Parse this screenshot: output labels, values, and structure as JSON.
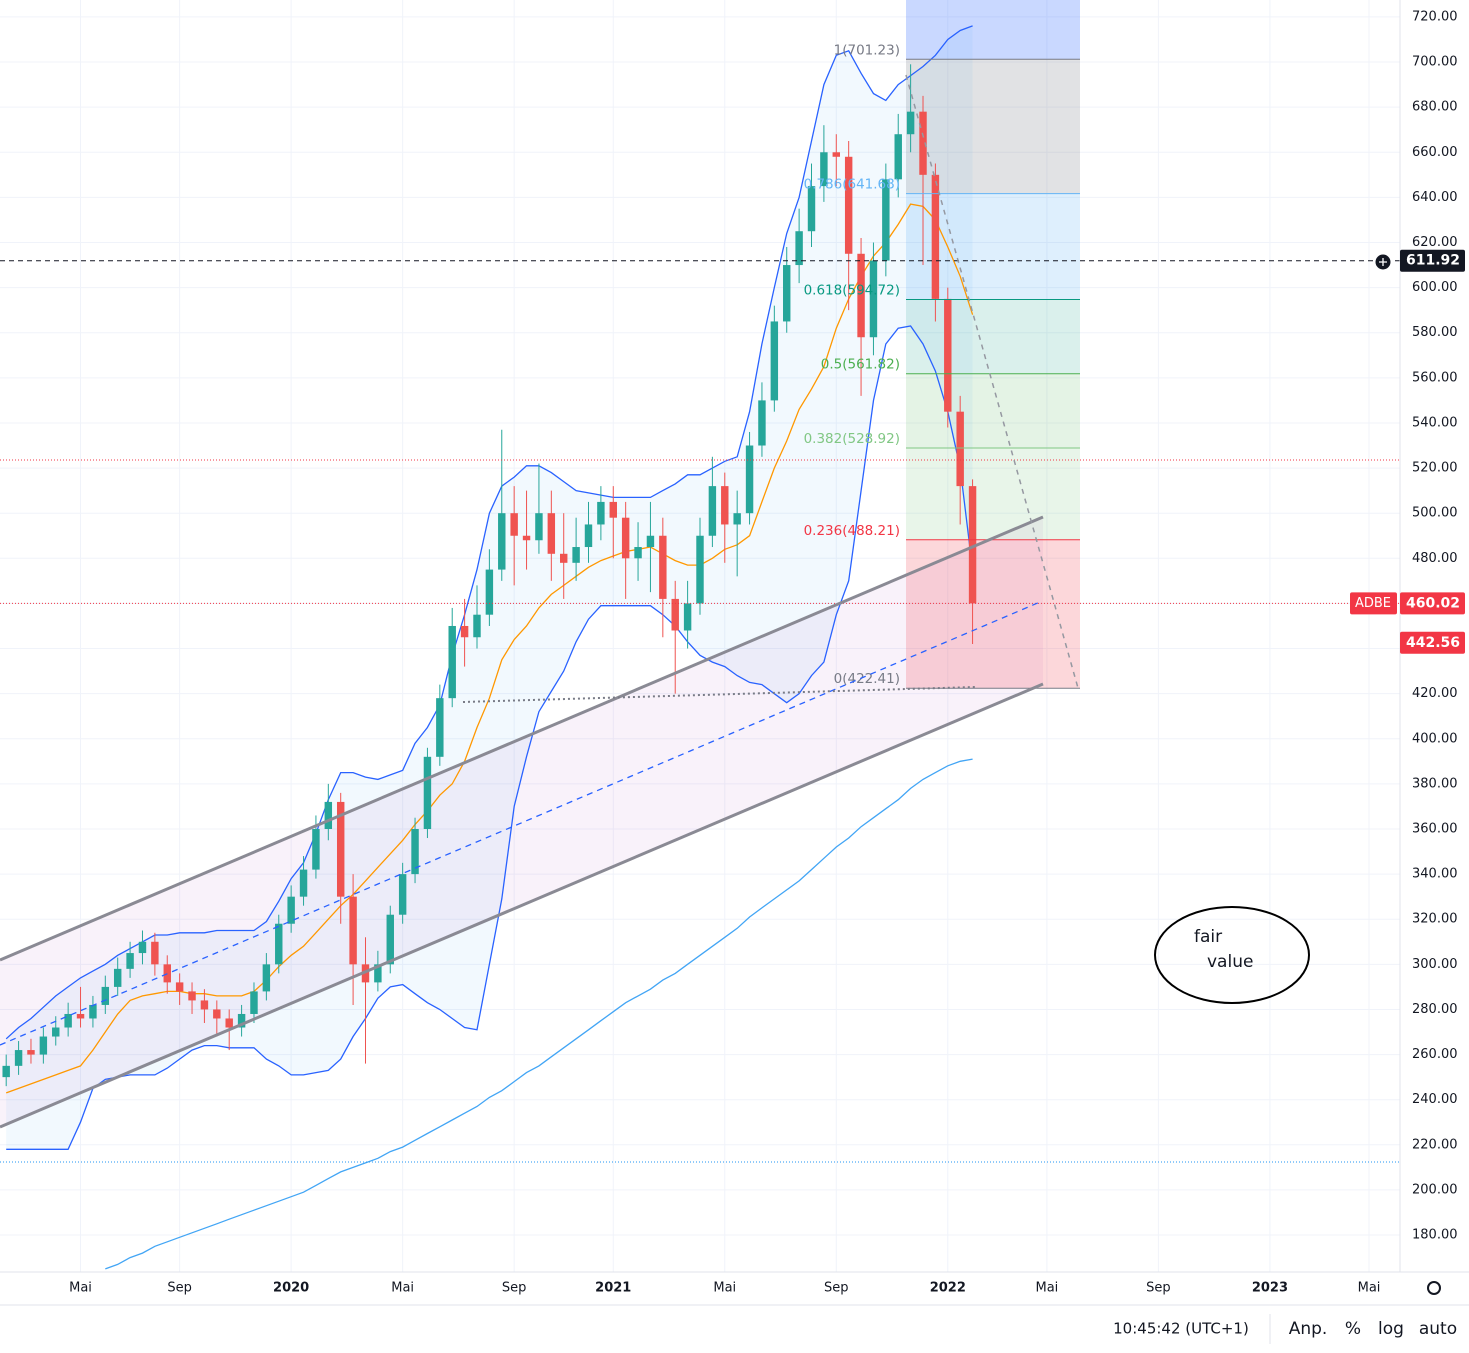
{
  "chart_data": {
    "type": "candlestick",
    "ylim": [
      164.5,
      727.5
    ],
    "yticks": [
      {
        "value": 720,
        "label": "720.00"
      },
      {
        "value": 700,
        "label": "700.00"
      },
      {
        "value": 680,
        "label": "680.00"
      },
      {
        "value": 660,
        "label": "660.00"
      },
      {
        "value": 640,
        "label": "640.00"
      },
      {
        "value": 620,
        "label": "620.00"
      },
      {
        "value": 600,
        "label": "600.00"
      },
      {
        "value": 580,
        "label": "580.00"
      },
      {
        "value": 560,
        "label": "560.00"
      },
      {
        "value": 540,
        "label": "540.00"
      },
      {
        "value": 520,
        "label": "520.00"
      },
      {
        "value": 500,
        "label": "500.00"
      },
      {
        "value": 480,
        "label": "480.00"
      },
      {
        "value": 460,
        "label": "460.00"
      },
      {
        "value": 440,
        "label": "440.00"
      },
      {
        "value": 420,
        "label": "420.00"
      },
      {
        "value": 400,
        "label": "400.00"
      },
      {
        "value": 380,
        "label": "380.00"
      },
      {
        "value": 360,
        "label": "360.00"
      },
      {
        "value": 340,
        "label": "340.00"
      },
      {
        "value": 320,
        "label": "320.00"
      },
      {
        "value": 300,
        "label": "300.00"
      },
      {
        "value": 280,
        "label": "280.00"
      },
      {
        "value": 260,
        "label": "260.00"
      },
      {
        "value": 240,
        "label": "240.00"
      },
      {
        "value": 220,
        "label": "220.00"
      },
      {
        "value": 200,
        "label": "200.00"
      },
      {
        "value": 180,
        "label": "180.00"
      }
    ],
    "grid": true,
    "up_color": "#26a69a",
    "down_color": "#ef5350",
    "categories": [
      null,
      null,
      null,
      null,
      null,
      null,
      "Mai",
      null,
      null,
      null,
      null,
      null,
      null,
      null,
      "Sep",
      null,
      null,
      null,
      null,
      null,
      null,
      null,
      null,
      "2020",
      null,
      null,
      null,
      null,
      null,
      null,
      null,
      null,
      "Mai",
      null,
      null,
      null,
      null,
      null,
      null,
      null,
      null,
      "Sep",
      null,
      null,
      null,
      null,
      null,
      null,
      null,
      "2021",
      null,
      null,
      null,
      null,
      null,
      null,
      null,
      null,
      "Mai",
      null,
      null,
      null,
      null,
      null,
      null,
      null,
      null,
      "Sep",
      null,
      null,
      null,
      null,
      null,
      null,
      null,
      null,
      "2022",
      null,
      null,
      null,
      null,
      null,
      null,
      null,
      "Mai",
      null,
      null,
      null,
      null,
      null,
      null,
      null,
      null,
      "Sep",
      null,
      null,
      null,
      null,
      null,
      null,
      null,
      null,
      "2023",
      null,
      null,
      null,
      null,
      null,
      null,
      null,
      "Mai",
      null,
      null
    ],
    "open": [
      250,
      255,
      262,
      260,
      268,
      272,
      278,
      276,
      282,
      290,
      298,
      305,
      310,
      300,
      292,
      288,
      284,
      280,
      276,
      272,
      278,
      288,
      300,
      318,
      330,
      342,
      360,
      372,
      330,
      300,
      292,
      300,
      322,
      340,
      360,
      392,
      418,
      450,
      445,
      455,
      475,
      500,
      490,
      488,
      500,
      482,
      478,
      485,
      495,
      505,
      498,
      480,
      485,
      490,
      462,
      448,
      460,
      490,
      512,
      495,
      500,
      530,
      550,
      585,
      610,
      625,
      645,
      660,
      658,
      615,
      578,
      612,
      648,
      668,
      678,
      650,
      595,
      545,
      512,
      null,
      null,
      null,
      null,
      null,
      null,
      null,
      null,
      null,
      null,
      null,
      null,
      null,
      null,
      null,
      null,
      null,
      null,
      null,
      null,
      null,
      null,
      null,
      null,
      null,
      null,
      null,
      null,
      null,
      null,
      null,
      null,
      null,
      null
    ],
    "high": [
      260,
      266,
      267,
      272,
      277,
      283,
      290,
      286,
      295,
      303,
      310,
      315,
      314,
      304,
      296,
      292,
      289,
      284,
      280,
      282,
      292,
      305,
      322,
      335,
      348,
      366,
      380,
      376,
      340,
      312,
      306,
      326,
      345,
      365,
      396,
      424,
      458,
      462,
      468,
      484,
      537,
      512,
      510,
      522,
      510,
      500,
      498,
      505,
      512,
      512,
      505,
      496,
      505,
      498,
      470,
      470,
      498,
      525,
      518,
      510,
      536,
      558,
      592,
      618,
      635,
      655,
      672,
      668,
      665,
      622,
      620,
      655,
      677,
      699,
      685,
      655,
      600,
      552,
      515,
      null,
      null,
      null,
      null,
      null,
      null,
      null,
      null,
      null,
      null,
      null,
      null,
      null,
      null,
      null,
      null,
      null,
      null,
      null,
      null,
      null,
      null,
      null,
      null,
      null,
      null,
      null,
      null,
      null,
      null,
      null,
      null,
      null,
      null
    ],
    "low": [
      246,
      251,
      256,
      256,
      264,
      268,
      272,
      272,
      278,
      286,
      294,
      300,
      295,
      287,
      282,
      278,
      274,
      268,
      262,
      268,
      274,
      284,
      296,
      314,
      326,
      338,
      355,
      318,
      282,
      256,
      288,
      296,
      318,
      336,
      356,
      388,
      414,
      432,
      440,
      450,
      470,
      468,
      475,
      482,
      470,
      462,
      470,
      478,
      488,
      480,
      462,
      470,
      465,
      445,
      420,
      440,
      455,
      485,
      478,
      472,
      495,
      525,
      545,
      580,
      602,
      618,
      638,
      645,
      590,
      552,
      570,
      605,
      640,
      660,
      610,
      585,
      538,
      495,
      442,
      null,
      null,
      null,
      null,
      null,
      null,
      null,
      null,
      null,
      null,
      null,
      null,
      null,
      null,
      null,
      null,
      null,
      null,
      null,
      null,
      null,
      null,
      null,
      null,
      null,
      null,
      null,
      null,
      null,
      null,
      null,
      null,
      null,
      null
    ],
    "close": [
      255,
      262,
      260,
      268,
      272,
      278,
      276,
      282,
      290,
      298,
      305,
      310,
      300,
      292,
      288,
      284,
      280,
      276,
      272,
      278,
      288,
      300,
      318,
      330,
      342,
      360,
      372,
      330,
      300,
      292,
      300,
      322,
      340,
      360,
      392,
      418,
      450,
      445,
      455,
      475,
      500,
      490,
      488,
      500,
      482,
      478,
      485,
      495,
      505,
      498,
      480,
      485,
      490,
      462,
      448,
      460,
      490,
      512,
      495,
      500,
      530,
      550,
      585,
      610,
      625,
      645,
      660,
      658,
      615,
      578,
      612,
      648,
      668,
      678,
      650,
      595,
      545,
      512,
      460.02,
      null,
      null,
      null,
      null,
      null,
      null,
      null,
      null,
      null,
      null,
      null,
      null,
      null,
      null,
      null,
      null,
      null,
      null,
      null,
      null,
      null,
      null,
      null,
      null,
      null,
      null,
      null,
      null,
      null,
      null,
      null,
      null,
      null,
      null
    ],
    "bands": {
      "color": "#2962ff",
      "fill": "rgba(33,150,243,0.06)",
      "upper": [
        267,
        272,
        276,
        281,
        286,
        290,
        294,
        297,
        300,
        304,
        307,
        310,
        313,
        313,
        314,
        314,
        314,
        315,
        315,
        315,
        315,
        319,
        328,
        338,
        345,
        358,
        373,
        385,
        385,
        383,
        382,
        384,
        386,
        398,
        405,
        415,
        437,
        455,
        475,
        500,
        512,
        516,
        521,
        521,
        518,
        514,
        510,
        509,
        508,
        507,
        507,
        507,
        507,
        510,
        513,
        517,
        517,
        520,
        523,
        525,
        545,
        575,
        600,
        624,
        640,
        665,
        690,
        703,
        705,
        695,
        686,
        683,
        690,
        694,
        698,
        703,
        710,
        714,
        716,
        null,
        null,
        null,
        null,
        null,
        null,
        null,
        null,
        null,
        null,
        null,
        null,
        null,
        null,
        null,
        null,
        null,
        null,
        null,
        null,
        null,
        null,
        null,
        null,
        null,
        null,
        null,
        null,
        null,
        null,
        null,
        null,
        null,
        null
      ],
      "lower": [
        218,
        218,
        218,
        218,
        218,
        218,
        230,
        245,
        249,
        250,
        251,
        251,
        251,
        254,
        258,
        262,
        264,
        264,
        263,
        263,
        263,
        258,
        255,
        251,
        251,
        252,
        253,
        258,
        268,
        276,
        285,
        290,
        291,
        287,
        283,
        280,
        276,
        272,
        271,
        300,
        329,
        370,
        392,
        412,
        421,
        430,
        443,
        453,
        459,
        459,
        459,
        459,
        459,
        455,
        450,
        443,
        437,
        434,
        432,
        428,
        425,
        424,
        420,
        416,
        420,
        428,
        434,
        455,
        470,
        510,
        550,
        575,
        582,
        583,
        575,
        563,
        545,
        520,
        475,
        null,
        null,
        null,
        null,
        null,
        null,
        null,
        null,
        null,
        null,
        null,
        null,
        null,
        null,
        null,
        null,
        null,
        null,
        null,
        null,
        null,
        null,
        null,
        null,
        null,
        null,
        null,
        null,
        null,
        null,
        null,
        null,
        null,
        null
      ]
    },
    "moving_averages": [
      {
        "color": "#ff9800",
        "values": [
          243,
          245,
          247,
          249,
          251,
          253,
          255,
          262,
          270,
          278,
          284,
          286,
          287,
          288,
          288,
          287,
          287,
          286,
          286,
          286,
          288,
          293,
          299,
          304,
          308,
          314,
          320,
          326,
          331,
          337,
          343,
          349,
          355,
          362,
          368,
          375,
          380,
          390,
          405,
          418,
          435,
          444,
          450,
          458,
          464,
          468,
          472,
          476,
          479,
          481,
          483,
          484,
          485,
          482,
          479,
          477,
          477,
          480,
          484,
          486,
          490,
          505,
          520,
          532,
          546,
          555,
          565,
          582,
          595,
          605,
          614,
          620,
          628,
          637,
          636,
          630,
          618,
          605,
          588,
          null,
          null,
          null,
          null,
          null,
          null,
          null,
          null,
          null,
          null,
          null,
          null,
          null,
          null,
          null,
          null,
          null,
          null,
          null,
          null,
          null,
          null,
          null,
          null,
          null,
          null,
          null,
          null,
          null,
          null,
          null,
          null,
          null,
          null
        ]
      },
      {
        "color": "#42a5f5",
        "values": [
          null,
          null,
          null,
          null,
          null,
          null,
          null,
          null,
          165,
          167,
          170,
          172,
          175,
          177,
          179,
          181,
          183,
          185,
          187,
          189,
          191,
          193,
          195,
          197,
          199,
          202,
          205,
          208,
          210,
          212,
          214,
          217,
          219,
          222,
          225,
          228,
          231,
          234,
          237,
          241,
          244,
          248,
          252,
          255,
          259,
          263,
          267,
          271,
          275,
          279,
          283,
          286,
          289,
          293,
          296,
          300,
          304,
          308,
          312,
          316,
          321,
          325,
          329,
          333,
          337,
          342,
          347,
          352,
          356,
          361,
          365,
          369,
          373,
          378,
          382,
          385,
          388,
          390,
          391,
          null,
          null,
          null,
          null,
          null,
          null,
          null,
          null,
          null,
          null,
          null,
          null,
          null,
          null,
          null,
          null,
          null,
          null,
          null,
          null,
          null,
          null,
          null,
          null,
          null,
          null,
          null,
          null,
          null,
          null,
          null,
          null,
          null,
          null
        ]
      }
    ],
    "fib_levels": [
      {
        "value": 701.23,
        "label": "1(701.23)",
        "color": "#787b86",
        "fill": "rgba(120,123,134,0.22)"
      },
      {
        "value": 641.68,
        "label": "0.786(641.68)",
        "color": "#64b5f6",
        "fill": "rgba(33,150,243,0.15)"
      },
      {
        "value": 594.72,
        "label": "0.618(594.72)",
        "color": "#089981",
        "fill": "rgba(8,153,129,0.15)"
      },
      {
        "value": 561.82,
        "label": "0.5(561.82)",
        "color": "#4caf50",
        "fill": "rgba(76,175,80,0.15)"
      },
      {
        "value": 528.92,
        "label": "0.382(528.92)",
        "color": "#81c784",
        "fill": "rgba(129,199,132,0.18)"
      },
      {
        "value": 488.21,
        "label": "0.236(488.21)",
        "color": "#f23645",
        "fill": "rgba(242,54,69,0.2)"
      },
      {
        "value": 422.41,
        "label": "0(422.41)",
        "color": "#787b86"
      }
    ],
    "price_lines": [
      {
        "value": 611.92,
        "color": "#131722",
        "line": "dashed",
        "tag": true
      },
      {
        "value": 523.6,
        "color": "#f23645",
        "line": "dotted"
      },
      {
        "value": 460.02,
        "color": "#f23645",
        "line": "dotted",
        "tag": true,
        "name": "ADBE"
      },
      {
        "value": 442.56,
        "color": "#f23645",
        "line": "none",
        "tag": true
      },
      {
        "value": 212.4,
        "color": "#2196f3",
        "line": "dotted"
      }
    ],
    "annotation": [
      "fair",
      "value"
    ]
  },
  "status_bar": {
    "time": "10:45:42 (UTC+1)",
    "buttons": [
      "Anp.",
      "%",
      "log",
      "auto"
    ]
  }
}
